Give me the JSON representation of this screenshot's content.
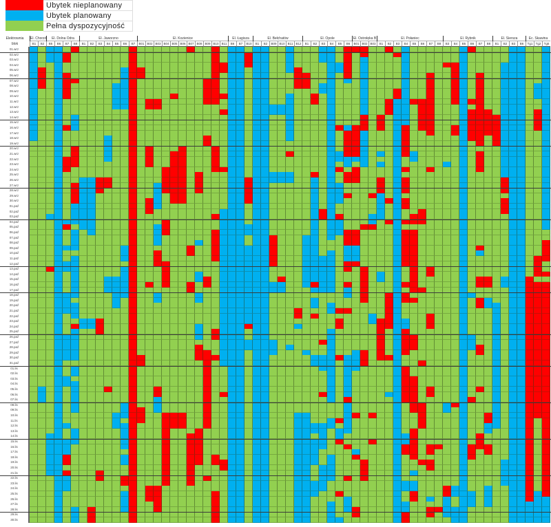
{
  "colors": {
    "R": "#ff0000",
    "B": "#00b0f0",
    "G": "#92d050"
  },
  "legend": [
    {
      "label": "Ubytek nieplanowany",
      "code": "R"
    },
    {
      "label": "Ubytek planowany",
      "code": "B"
    },
    {
      "label": "Pełna dyspozycyjność",
      "code": "G"
    }
  ],
  "header": {
    "plant_label": "Elektrownia",
    "block_label": "blok"
  },
  "rows": [
    "01.wrz",
    "02.wrz",
    "03.wrz",
    "04.wrz",
    "05.wrz",
    "06.wrz",
    "07.wrz",
    "08.wrz",
    "09.wrz",
    "10.wrz",
    "11.wrz",
    "12.wrz",
    "13.wrz",
    "14.wrz",
    "15.wrz",
    "16.wrz",
    "17.wrz",
    "18.wrz",
    "19.wrz",
    "20.wrz",
    "21.wrz",
    "22.wrz",
    "23.wrz",
    "24.wrz",
    "25.wrz",
    "26.wrz",
    "27.wrz",
    "28.wrz",
    "29.wrz",
    "30.wrz",
    "01.paź",
    "02.paź",
    "03.paź",
    "04.paź",
    "05.paź",
    "06.paź",
    "07.paź",
    "08.paź",
    "09.paź",
    "10.paź",
    "11.paź",
    "12.paź",
    "13.paź",
    "14.paź",
    "15.paź",
    "16.paź",
    "17.paź",
    "18.paź",
    "19.paź",
    "20.paź",
    "21.paź",
    "22.paź",
    "23.paź",
    "24.paź",
    "25.paź",
    "26.paź",
    "27.paź",
    "28.paź",
    "29.paź",
    "30.paź",
    "31.paź",
    "01.lis",
    "02.lis",
    "03.lis",
    "04.lis",
    "05.lis",
    "06.lis",
    "07.lis",
    "08.lis",
    "09.lis",
    "10.lis",
    "11.lis",
    "12.lis",
    "13.lis",
    "14.lis",
    "15.lis",
    "16.lis",
    "17.lis",
    "18.lis",
    "19.lis",
    "20.lis",
    "21.lis",
    "22.lis",
    "23.lis",
    "24.lis",
    "25.lis",
    "26.lis",
    "27.lis",
    "28.lis",
    "29.lis",
    "30.lis"
  ],
  "chart_data": {
    "type": "heatmap",
    "encoding": "run-length per block, top to bottom over rows: R=Ubytek nieplanowany, B=Ubytek planowany, G=Pełna dyspozycyjność",
    "groups": [
      {
        "name": "El. Chorzów",
        "blocks": [
          {
            "label": "B1",
            "cells": "B18 G73"
          },
          {
            "label": "B2",
            "cells": "G4 R4 G57 B3 G23"
          }
        ]
      },
      {
        "name": "El. Dolna Odra",
        "blocks": [
          {
            "label": "B5",
            "cells": "B3 G29 B1 G9 R1 G31 B8 G9"
          },
          {
            "label": "B6",
            "cells": "B91"
          },
          {
            "label": "B7",
            "cells": "G1 R2 G2 R5 G5 R1 G5 R3 G9 B1 R1 G3 B1 G2 B2 G4 B4 G4 B5 G3 B2 G7 B1 G2 B3 R2 G1 R1 B3 G6"
          },
          {
            "label": "B8",
            "cells": "R1 G5 R1 G6 B3 G3 R4 G3 R4 B4 G1 B4 G1 B8 G1 B3 G1 R1 B6 G1 B2 G1 B6 G3 B3 G12 B3"
          }
        ]
      },
      {
        "name": "El. Jaworzno",
        "blocks": [
          {
            "label": "B1",
            "cells": "G25 B10 G17 B2 G37"
          },
          {
            "label": "B2",
            "cells": "G25 B11 G16 B2 G34 R3"
          },
          {
            "label": "B3",
            "cells": "G25 R3 G24 R3 G26 R2 G8"
          },
          {
            "label": "B4",
            "cells": "G17 B5 G3 R2 G17 B3 G18 R1 G25"
          },
          {
            "label": "B5",
            "cells": "G7 B5 G32 B6 G20 B3 G18"
          },
          {
            "label": "B6",
            "cells": "G4 B8 G26 B3 G1 B6 G20 B3 G1 B5 G1 B2 G2 R2 G1 B4 G2"
          },
          {
            "label": "B7",
            "cells": "R91"
          }
        ]
      },
      {
        "name": "El. Kozienice",
        "blocks": [
          {
            "label": "B01",
            "cells": "G4 R2 G53 R2 G8 R3 G19"
          },
          {
            "label": "B02",
            "cells": "G10 R2 G7 R4 G6 R3 G13 R1 G38 R3 G4"
          },
          {
            "label": "B03",
            "cells": "G10 R2 G14 B5 G3 B4 G1 R3 G5 B2 G16 R2 B3 G14 R5 G2"
          },
          {
            "label": "B04",
            "cells": "G23 R5 G5 R3 G5 R5 G24 R14 G7"
          },
          {
            "label": "B05",
            "cells": "G9 R1 G10 R10 G40 R3 G18"
          },
          {
            "label": "B06",
            "cells": "G19 R11 G40 R3 G18"
          },
          {
            "label": "B07",
            "cells": "R1 G37 R2 G5 R2 G27 R10 G7"
          },
          {
            "label": "B08",
            "cells": "G24 R4 G9 B1 G5 B2 G2 B2 G4 B3 G1 R3 G13 R7 G11"
          },
          {
            "label": "B09",
            "cells": "G6 R5 G6 R2 G25 R2 G12 R15 G9 R1 G8"
          },
          {
            "label": "B10",
            "cells": "R11 G8 R5 G8 R1 G2 R6 G13 R2 G3 R1 G18 R2 G5 R6"
          },
          {
            "label": "B11",
            "cells": "G3 R2 G4 R1 G2 R1 G10 R1 G7 B30 G5 R1 G12 R2 G10"
          }
        ]
      },
      {
        "name": "El. Łagisza",
        "blocks": [
          {
            "label": "B6",
            "cells": "B91"
          },
          {
            "label": "B7",
            "cells": "B91"
          },
          {
            "label": "B10",
            "cells": "G1 R3 G21 R5 G4 B2 G2 B15 R1 G2 B2 G33"
          }
        ]
      },
      {
        "name": "El. Bełchatów",
        "blocks": [
          {
            "label": "B1",
            "cells": "B91"
          },
          {
            "label": "B2",
            "cells": "B91"
          },
          {
            "label": "B09",
            "cells": "G11 B2 G11 B2 G10 R6 G3 B2 G9 B3 G32"
          },
          {
            "label": "B10",
            "cells": "G11 B2 G11 B2 G18 R1 B2 G44"
          },
          {
            "label": "B11",
            "cells": "B5 G4 B9 G2 R1 G3 B2 G31 B1 G33"
          },
          {
            "label": "B12",
            "cells": "G4 R4 G42 R2 G1 B1 G16 B21"
          }
        ]
      },
      {
        "name": "El. Opole",
        "blocks": [
          {
            "label": "B1",
            "cells": "G5 R3 G28 B10 G12 B1 G11 B21"
          },
          {
            "label": "B2",
            "cells": "G9 R2 G13 R1 B20 R1 B1 G1 B2 G1 R1 G7 B2 G11 B2 G1 B5 G3 B3 G5"
          },
          {
            "label": "B3",
            "cells": "B3 G4 B2 G22 R2 G7 B7 G9 R1 G2 B3 G4 R1 G5 B5 G3 B5 G6"
          },
          {
            "label": "B4",
            "cells": "B37 G2 B8 G2 B2 G3 B14 G3 B2 G5 B5 G4 B4"
          },
          {
            "label": "B5",
            "cells": "G3 B2 G10 R1 G4 B2 G1 R1 G2 B4 G2 R1 B3 G14 R1 G1 R2 G5 R1 G11 R1 G1 B2 R1 G9 R1 G4 B1"
          },
          {
            "label": "B6",
            "cells": "R6 B1 G8 B1 R5 B2 G1 R2 G2 R1 G6 R3 B3 R2 G2 R1 B2 G2 R1 G8 B8 R1 B6 G2 R1 G5 R1 G3 B3 G2"
          }
        ]
      },
      {
        "name": "El. Ostrołęka B",
        "blocks": [
          {
            "label": "B01",
            "cells": "R1 G14 R6 B1 G1 R3 G9 R3 B3 R1 G16 B4 G8 R1 G6 B1 R1 G9 R2 G1"
          },
          {
            "label": "B02",
            "cells": "R2 B11 R3 B7 G11 R1 G7 R7 G9 R3 G18 R4 G8"
          },
          {
            "label": "B03",
            "cells": "G28 R1 G3 B2 R1 G16 B2 G17 R1 G4 R1 G15"
          }
        ]
      },
      {
        "name": "El. Połaniec",
        "blocks": [
          {
            "label": "B1",
            "cells": "G13 R3 G4 B1 G1 B1 G2 R3 B5 G10 B2 G7 R8 G31"
          },
          {
            "label": "B2",
            "cells": "R1 G9 R3 G16 R1 G3 R1 G13 R7 G5 R1 G6 B1 G24"
          },
          {
            "label": "B3",
            "cells": "G1 R1 G6 R2 B81"
          },
          {
            "label": "B4",
            "cells": "B15 R6 G2 R1 G1 R3 G1 R2 G2 R1 G1 R7 G3 R1 G1 R2 G3 B2 R5 G2 R4 R3 G6 B2 R2 G5 B2 G2 B2 R2"
          },
          {
            "label": "B5",
            "cells": "G10 R1 G9 B2 G10 R2 G1 R12 G1 R1 G6 R3 G5 R7 G3 R6 G2 B1 G1 B2 R2 G4"
          },
          {
            "label": "B6",
            "cells": "G10 R6 G15 R3 G12 R1 G13 R1 G7 R5 G6 R1 G11"
          },
          {
            "label": "B7",
            "cells": "G5 R12 G6 R1 G18 R2 G7 R3 G11 R2 G9 R2 G1 R2 G5 B1 G1 R2 G1"
          },
          {
            "label": "B8",
            "cells": "G76 R1 G11 R1 G2"
          }
        ]
      },
      {
        "name": "El. Rybnik",
        "blocks": [
          {
            "label": "B3",
            "cells": "G3 R1 G18 B1 G45 B2 G14 R2 B4 G1"
          },
          {
            "label": "B4",
            "cells": "G3 R8 G4 R2 G51 R1 G15 B2 G2 B3"
          },
          {
            "label": "B5",
            "cells": "B91"
          },
          {
            "label": "B6",
            "cells": "R1 G9 R1 G1 R6 G29 B1 G7 B3 G9 R1 G8 R3 G6 B3 G3"
          },
          {
            "label": "B7",
            "cells": "G5 R14 G1 R4 G14 R1 B1 G4 R2 G2 R2 G7 R2 G6 R1 G8 R3 G14"
          },
          {
            "label": "B8",
            "cells": "G12 R5 G27 R2 G2 B2 G20 R2 B2 G2 R2 G6 B4 G3"
          }
        ]
      },
      {
        "name": "El. Siersza",
        "blocks": [
          {
            "label": "B1",
            "cells": "G13 R6 G30 B24 G18"
          },
          {
            "label": "B2",
            "cells": "G3 B22 R3 G1 R3 G12 B2 G33 B5 G7"
          },
          {
            "label": "B3",
            "cells": "B91"
          },
          {
            "label": "B6",
            "cells": "B91"
          }
        ]
      },
      {
        "name": "Ec. Skawina",
        "blocks": [
          {
            "label": "Tg1",
            "cells": "G44 R43 B4"
          },
          {
            "label": "Tg2",
            "cells": "G7 B3 G2 R4 G24 R4 G1 R26 G14 B6"
          },
          {
            "label": "Tg5",
            "cells": "B35 G2 R4 G2 R1 G1 R41 B5"
          }
        ]
      }
    ]
  }
}
